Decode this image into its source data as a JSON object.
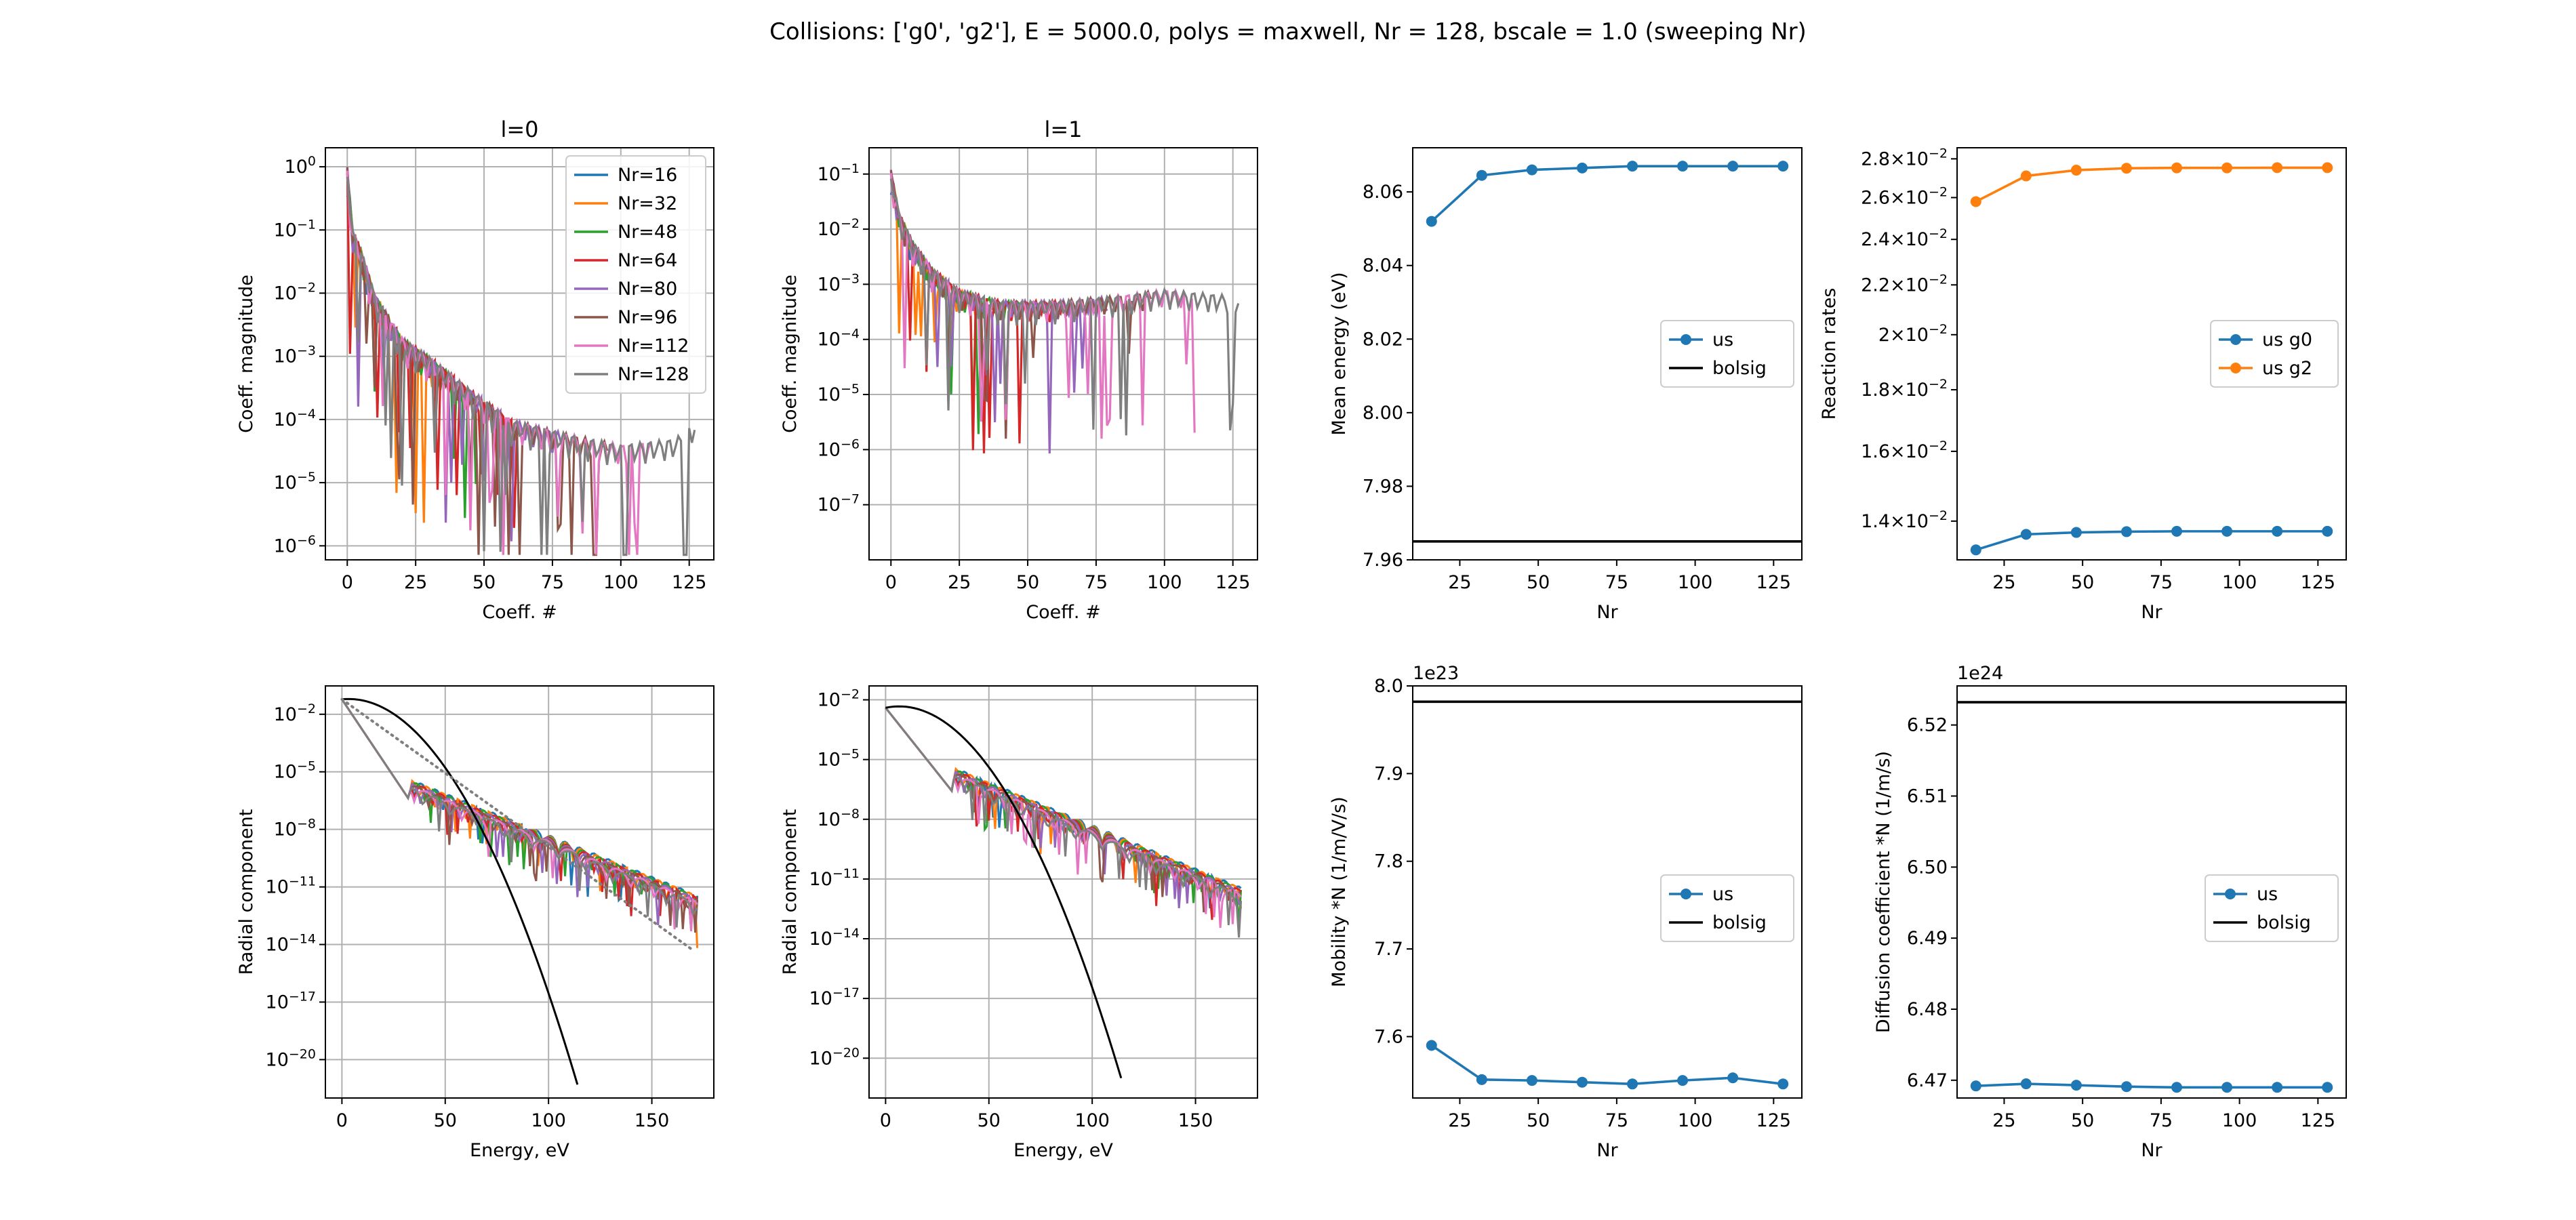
{
  "suptitle": "Collisions: ['g0', 'g2'], E = 5000.0, polys = maxwell, Nr = 128, bscale = 1.0 (sweeping Nr)",
  "colors": {
    "Nr=16": "#1f77b4",
    "Nr=32": "#ff7f0e",
    "Nr=48": "#2ca02c",
    "Nr=64": "#d62728",
    "Nr=80": "#9467bd",
    "Nr=96": "#8c564b",
    "Nr=112": "#e377c2",
    "Nr=128": "#7f7f7f",
    "us": "#1f77b4",
    "us_g2": "#ff7f0e",
    "bolsig": "#000000"
  },
  "chart_data": [
    {
      "id": "l0_coeffs",
      "type": "line",
      "title": "l=0",
      "xlabel": "Coeff. #",
      "ylabel": "Coeff. magnitude",
      "xlim": [
        -8,
        134
      ],
      "ylim": [
        6e-07,
        2
      ],
      "yscale": "log",
      "grid": true,
      "xticks": [
        "0",
        "25",
        "50",
        "75",
        "100",
        "125"
      ],
      "yticks": [
        "10^0",
        "10^-1",
        "10^-2",
        "10^-3",
        "10^-4",
        "10^-5",
        "10^-6"
      ],
      "legend_loc": "upper right",
      "legend": [
        "Nr=16",
        "Nr=32",
        "Nr=48",
        "Nr=64",
        "Nr=80",
        "Nr=96",
        "Nr=112",
        "Nr=128"
      ],
      "series": [
        {
          "name": "Nr=16",
          "n": 16
        },
        {
          "name": "Nr=32",
          "n": 32
        },
        {
          "name": "Nr=48",
          "n": 48
        },
        {
          "name": "Nr=64",
          "n": 64
        },
        {
          "name": "Nr=80",
          "n": 80
        },
        {
          "name": "Nr=96",
          "n": 96
        },
        {
          "name": "Nr=112",
          "n": 112
        },
        {
          "name": "Nr=128",
          "n": 128
        }
      ],
      "envelope": [
        [
          0,
          1.0
        ],
        [
          2,
          0.1
        ],
        [
          5,
          0.05
        ],
        [
          10,
          0.01
        ],
        [
          20,
          0.002
        ],
        [
          30,
          0.001
        ],
        [
          45,
          0.0003
        ],
        [
          60,
          0.0001
        ],
        [
          80,
          6e-05
        ],
        [
          100,
          4e-05
        ],
        [
          120,
          5e-05
        ],
        [
          128,
          0.0001
        ]
      ]
    },
    {
      "id": "l1_coeffs",
      "type": "line",
      "title": "l=1",
      "xlabel": "Coeff. #",
      "ylabel": "Coeff. magnitude",
      "xlim": [
        -8,
        134
      ],
      "ylim": [
        1e-08,
        0.3
      ],
      "yscale": "log",
      "grid": true,
      "xticks": [
        "0",
        "25",
        "50",
        "75",
        "100",
        "125"
      ],
      "yticks": [
        "10^-1",
        "10^-2",
        "10^-3",
        "10^-4",
        "10^-5",
        "10^-6",
        "10^-7"
      ],
      "series": [
        {
          "name": "Nr=16",
          "n": 16
        },
        {
          "name": "Nr=32",
          "n": 32
        },
        {
          "name": "Nr=48",
          "n": 48
        },
        {
          "name": "Nr=64",
          "n": 64
        },
        {
          "name": "Nr=80",
          "n": 80
        },
        {
          "name": "Nr=96",
          "n": 96
        },
        {
          "name": "Nr=112",
          "n": 112
        },
        {
          "name": "Nr=128",
          "n": 128
        }
      ],
      "envelope": [
        [
          0,
          0.12
        ],
        [
          3,
          0.02
        ],
        [
          8,
          0.006
        ],
        [
          15,
          0.002
        ],
        [
          25,
          0.0008
        ],
        [
          40,
          0.0005
        ],
        [
          60,
          0.0005
        ],
        [
          80,
          0.0006
        ],
        [
          100,
          0.0008
        ],
        [
          128,
          0.0006
        ]
      ]
    },
    {
      "id": "mean_energy",
      "type": "line",
      "xlabel": "Nr",
      "ylabel": "Mean energy (eV)",
      "xlim": [
        10,
        134
      ],
      "ylim": [
        7.96,
        8.072
      ],
      "grid": false,
      "xticks": [
        "25",
        "50",
        "75",
        "100",
        "125"
      ],
      "yticks": [
        "7.96",
        "7.98",
        "8.00",
        "8.02",
        "8.04",
        "8.06"
      ],
      "legend_loc": "center right",
      "legend": [
        "us",
        "bolsig"
      ],
      "x": [
        16,
        32,
        48,
        64,
        80,
        96,
        112,
        128
      ],
      "series": [
        {
          "name": "us",
          "values": [
            8.052,
            8.0645,
            8.066,
            8.0665,
            8.067,
            8.067,
            8.067,
            8.067
          ]
        },
        {
          "name": "bolsig",
          "hline": 7.965
        }
      ]
    },
    {
      "id": "reaction_rates",
      "type": "line",
      "xlabel": "Nr",
      "ylabel": "Reaction rates",
      "xlim": [
        10,
        134
      ],
      "ylim": [
        0.013,
        0.0286
      ],
      "yscale": "log",
      "grid": false,
      "xticks": [
        "25",
        "50",
        "75",
        "100",
        "125"
      ],
      "yticks": [
        "1.4×10^-2",
        "1.6×10^-2",
        "1.8×10^-2",
        "2×10^-2",
        "2.2×10^-2",
        "2.4×10^-2",
        "2.6×10^-2",
        "2.8×10^-2"
      ],
      "legend_loc": "center right",
      "legend": [
        "us g0",
        "us g2"
      ],
      "x": [
        16,
        32,
        48,
        64,
        80,
        96,
        112,
        128
      ],
      "series": [
        {
          "name": "us g0",
          "values": [
            0.01325,
            0.01365,
            0.0137,
            0.01372,
            0.01373,
            0.01373,
            0.01373,
            0.01373
          ]
        },
        {
          "name": "us g2",
          "values": [
            0.0258,
            0.0271,
            0.0274,
            0.0275,
            0.02752,
            0.02752,
            0.02753,
            0.02753
          ]
        }
      ]
    },
    {
      "id": "radial_l0",
      "type": "line",
      "xlabel": "Energy, eV",
      "ylabel": "Radial component",
      "xlim": [
        -8,
        180
      ],
      "ylim": [
        1e-22,
        0.3
      ],
      "yscale": "log",
      "grid": true,
      "xticks": [
        "0",
        "50",
        "100",
        "150"
      ],
      "yticks": [
        "10^-2",
        "10^-5",
        "10^-8",
        "10^-11",
        "10^-14",
        "10^-17",
        "10^-20"
      ],
      "maxwellian_end": [
        114,
        5e-22
      ],
      "dotted_end": [
        170,
        5e-15
      ],
      "series": [
        {
          "name": "Nr=16",
          "n": 16
        },
        {
          "name": "Nr=32",
          "n": 32
        },
        {
          "name": "Nr=48",
          "n": 48
        },
        {
          "name": "Nr=64",
          "n": 64
        },
        {
          "name": "Nr=80",
          "n": 80
        },
        {
          "name": "Nr=96",
          "n": 96
        },
        {
          "name": "Nr=112",
          "n": 112
        },
        {
          "name": "Nr=128",
          "n": 128
        }
      ]
    },
    {
      "id": "radial_l1",
      "type": "line",
      "xlabel": "Energy, eV",
      "ylabel": "Radial component",
      "xlim": [
        -8,
        180
      ],
      "ylim": [
        1e-22,
        0.05
      ],
      "yscale": "log",
      "grid": true,
      "xticks": [
        "0",
        "50",
        "100",
        "150"
      ],
      "yticks": [
        "10^-2",
        "10^-5",
        "10^-8",
        "10^-11",
        "10^-14",
        "10^-17",
        "10^-20"
      ],
      "maxwellian_end": [
        114,
        1e-21
      ],
      "series": [
        {
          "name": "Nr=16",
          "n": 16
        },
        {
          "name": "Nr=32",
          "n": 32
        },
        {
          "name": "Nr=48",
          "n": 48
        },
        {
          "name": "Nr=64",
          "n": 64
        },
        {
          "name": "Nr=80",
          "n": 80
        },
        {
          "name": "Nr=96",
          "n": 96
        },
        {
          "name": "Nr=112",
          "n": 112
        },
        {
          "name": "Nr=128",
          "n": 128
        }
      ]
    },
    {
      "id": "mobility",
      "type": "line",
      "xlabel": "Nr",
      "ylabel": "Mobility *N (1/m/V/s)",
      "offset_label": "1e23",
      "xlim": [
        10,
        134
      ],
      "ylim": [
        7.53,
        8.0
      ],
      "grid": false,
      "xticks": [
        "25",
        "50",
        "75",
        "100",
        "125"
      ],
      "yticks": [
        "7.6",
        "7.7",
        "7.8",
        "7.9",
        "8.0"
      ],
      "legend_loc": "center right",
      "legend": [
        "us",
        "bolsig"
      ],
      "x": [
        16,
        32,
        48,
        64,
        80,
        96,
        112,
        128
      ],
      "series": [
        {
          "name": "us",
          "values": [
            7.59,
            7.551,
            7.55,
            7.548,
            7.546,
            7.55,
            7.553,
            7.546
          ]
        },
        {
          "name": "bolsig",
          "hline": 7.982
        }
      ]
    },
    {
      "id": "diffusion",
      "type": "line",
      "xlabel": "Nr",
      "ylabel": "Diffusion coefficient *N (1/m/s)",
      "offset_label": "1e24",
      "xlim": [
        10,
        134
      ],
      "ylim": [
        6.4675,
        6.5255
      ],
      "grid": false,
      "xticks": [
        "25",
        "50",
        "75",
        "100",
        "125"
      ],
      "yticks": [
        "6.47",
        "6.48",
        "6.49",
        "6.50",
        "6.51",
        "6.52"
      ],
      "legend_loc": "center right",
      "legend": [
        "us",
        "bolsig"
      ],
      "x": [
        16,
        32,
        48,
        64,
        80,
        96,
        112,
        128
      ],
      "series": [
        {
          "name": "us",
          "values": [
            6.4692,
            6.4695,
            6.4693,
            6.4691,
            6.469,
            6.469,
            6.469,
            6.469
          ]
        },
        {
          "name": "bolsig",
          "hline": 6.5232
        }
      ]
    }
  ]
}
